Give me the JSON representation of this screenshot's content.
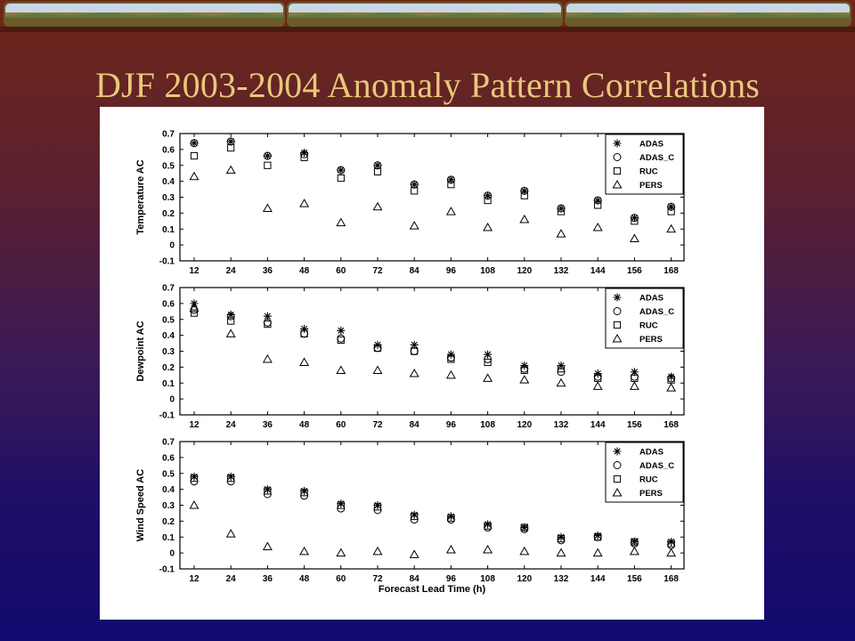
{
  "slide": {
    "title": "DJF 2003-2004 Anomaly Pattern Correlations"
  },
  "chart_data": [
    {
      "type": "scatter",
      "ylabel": "Temperature AC",
      "xlabel": "",
      "x": [
        12,
        24,
        36,
        48,
        60,
        72,
        84,
        96,
        108,
        120,
        132,
        144,
        156,
        168
      ],
      "ylim": [
        -0.1,
        0.7
      ],
      "yticks": [
        "-0.1",
        "0",
        "0.1",
        "0.2",
        "0.3",
        "0.4",
        "0.5",
        "0.6",
        "0.7"
      ],
      "xticks": [
        "12",
        "24",
        "36",
        "48",
        "60",
        "72",
        "84",
        "96",
        "108",
        "120",
        "132",
        "144",
        "156",
        "168"
      ],
      "legend_position": "top-right",
      "series": [
        {
          "name": "ADAS",
          "marker": "star",
          "values": [
            0.64,
            0.65,
            0.56,
            0.58,
            0.47,
            0.5,
            0.38,
            0.41,
            0.31,
            0.34,
            0.23,
            0.28,
            0.17,
            0.24
          ]
        },
        {
          "name": "ADAS_C",
          "marker": "circle",
          "values": [
            0.64,
            0.65,
            0.56,
            0.57,
            0.47,
            0.5,
            0.38,
            0.41,
            0.31,
            0.34,
            0.23,
            0.28,
            0.17,
            0.24
          ]
        },
        {
          "name": "RUC",
          "marker": "square",
          "values": [
            0.56,
            0.61,
            0.5,
            0.55,
            0.42,
            0.46,
            0.34,
            0.38,
            0.28,
            0.31,
            0.21,
            0.25,
            0.15,
            0.21
          ]
        },
        {
          "name": "PERS",
          "marker": "triangle",
          "values": [
            0.43,
            0.47,
            0.23,
            0.26,
            0.14,
            0.24,
            0.12,
            0.21,
            0.11,
            0.16,
            0.07,
            0.11,
            0.04,
            0.1
          ]
        }
      ]
    },
    {
      "type": "scatter",
      "ylabel": "Dewpoint AC",
      "xlabel": "",
      "x": [
        12,
        24,
        36,
        48,
        60,
        72,
        84,
        96,
        108,
        120,
        132,
        144,
        156,
        168
      ],
      "ylim": [
        -0.1,
        0.7
      ],
      "yticks": [
        "-0.1",
        "0",
        "0.1",
        "0.2",
        "0.3",
        "0.4",
        "0.5",
        "0.6",
        "0.7"
      ],
      "xticks": [
        "12",
        "24",
        "36",
        "48",
        "60",
        "72",
        "84",
        "96",
        "108",
        "120",
        "132",
        "144",
        "156",
        "168"
      ],
      "legend_position": "top-right",
      "series": [
        {
          "name": "ADAS",
          "marker": "star",
          "values": [
            0.6,
            0.53,
            0.52,
            0.44,
            0.43,
            0.34,
            0.34,
            0.28,
            0.28,
            0.21,
            0.21,
            0.16,
            0.17,
            0.14
          ]
        },
        {
          "name": "ADAS_C",
          "marker": "circle",
          "values": [
            0.56,
            0.52,
            0.48,
            0.41,
            0.38,
            0.32,
            0.3,
            0.26,
            0.25,
            0.19,
            0.17,
            0.14,
            0.14,
            0.13
          ]
        },
        {
          "name": "RUC",
          "marker": "square",
          "values": [
            0.54,
            0.49,
            0.47,
            0.41,
            0.37,
            0.32,
            0.3,
            0.25,
            0.23,
            0.18,
            0.19,
            0.13,
            0.13,
            0.12
          ]
        },
        {
          "name": "PERS",
          "marker": "triangle",
          "values": [
            0.57,
            0.41,
            0.25,
            0.23,
            0.18,
            0.18,
            0.16,
            0.15,
            0.13,
            0.12,
            0.1,
            0.08,
            0.08,
            0.07
          ]
        }
      ]
    },
    {
      "type": "scatter",
      "ylabel": "Wind Speed AC",
      "xlabel": "Forecast Lead Time (h)",
      "x": [
        12,
        24,
        36,
        48,
        60,
        72,
        84,
        96,
        108,
        120,
        132,
        144,
        156,
        168
      ],
      "ylim": [
        -0.1,
        0.7
      ],
      "yticks": [
        "-0.1",
        "0",
        "0.1",
        "0.2",
        "0.3",
        "0.4",
        "0.5",
        "0.6",
        "0.7"
      ],
      "xticks": [
        "12",
        "24",
        "36",
        "48",
        "60",
        "72",
        "84",
        "96",
        "108",
        "120",
        "132",
        "144",
        "156",
        "168"
      ],
      "legend_position": "top-right",
      "series": [
        {
          "name": "ADAS",
          "marker": "star",
          "values": [
            0.48,
            0.48,
            0.4,
            0.39,
            0.31,
            0.3,
            0.24,
            0.23,
            0.18,
            0.16,
            0.1,
            0.11,
            0.07,
            0.07
          ]
        },
        {
          "name": "ADAS_C",
          "marker": "circle",
          "values": [
            0.45,
            0.45,
            0.37,
            0.36,
            0.28,
            0.27,
            0.21,
            0.21,
            0.16,
            0.15,
            0.08,
            0.1,
            0.06,
            0.05
          ]
        },
        {
          "name": "RUC",
          "marker": "square",
          "values": [
            0.47,
            0.47,
            0.39,
            0.38,
            0.3,
            0.29,
            0.23,
            0.22,
            0.17,
            0.16,
            0.09,
            0.1,
            0.07,
            0.06
          ]
        },
        {
          "name": "PERS",
          "marker": "triangle",
          "values": [
            0.3,
            0.12,
            0.04,
            0.01,
            0.0,
            0.01,
            -0.01,
            0.02,
            0.02,
            0.01,
            0.0,
            0.0,
            0.01,
            0.0
          ]
        }
      ]
    }
  ]
}
